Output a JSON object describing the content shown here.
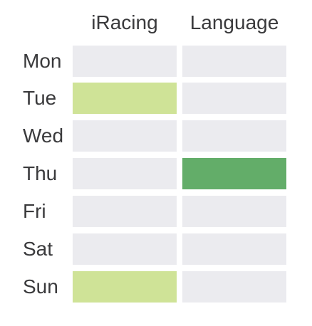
{
  "columns": [
    "iRacing",
    "Language"
  ],
  "rows": [
    {
      "day": "Mon",
      "levels": [
        0,
        0
      ]
    },
    {
      "day": "Tue",
      "levels": [
        1,
        0
      ]
    },
    {
      "day": "Wed",
      "levels": [
        0,
        0
      ]
    },
    {
      "day": "Thu",
      "levels": [
        0,
        2
      ]
    },
    {
      "day": "Fri",
      "levels": [
        0,
        0
      ]
    },
    {
      "day": "Sat",
      "levels": [
        0,
        0
      ]
    },
    {
      "day": "Sun",
      "levels": [
        1,
        0
      ]
    }
  ],
  "colors": {
    "empty": "#ebebef",
    "level1": "#cfe397",
    "level2": "#63ad69",
    "text": "#3a3a3c"
  }
}
